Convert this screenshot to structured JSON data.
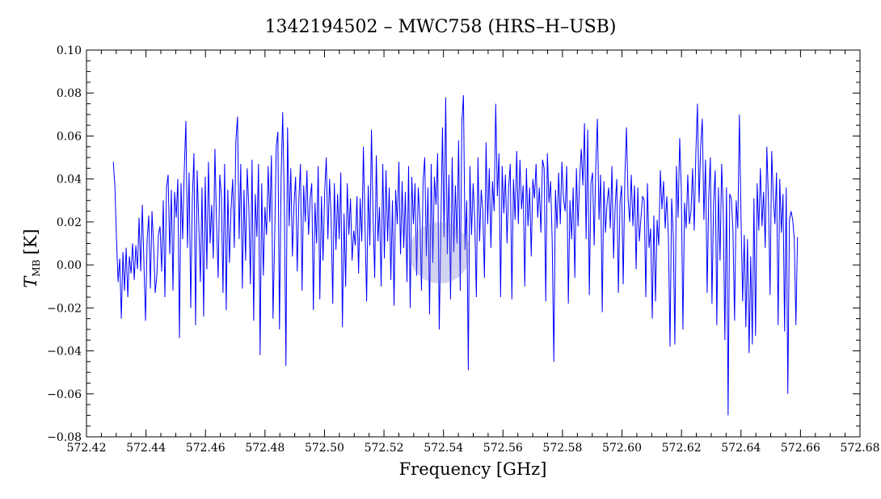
{
  "chart_data": {
    "type": "line",
    "title": "1342194502 – MWC758 (HRS–H–USB)",
    "xlabel": "Frequency [GHz]",
    "ylabel_main": "T",
    "ylabel_sub": "MB",
    "ylabel_unit": "[K]",
    "xlim": [
      572.42,
      572.68
    ],
    "ylim": [
      -0.08,
      0.1
    ],
    "x_ticks": [
      "572.42",
      "572.44",
      "572.46",
      "572.48",
      "572.50",
      "572.52",
      "572.54",
      "572.56",
      "572.58",
      "572.60",
      "572.62",
      "572.64",
      "572.66",
      "572.68"
    ],
    "y_ticks": [
      "−0.08",
      "−0.06",
      "−0.04",
      "−0.02",
      "0.00",
      "0.02",
      "0.04",
      "0.06",
      "0.08",
      "0.10"
    ],
    "grid": false,
    "series": [
      {
        "color": "#0000ff",
        "x_start": 572.429,
        "x_end": 572.659,
        "values": [
          0.048,
          0.037,
          0.012,
          -0.008,
          0.003,
          -0.025,
          0.006,
          -0.012,
          0.008,
          -0.015,
          0.004,
          -0.004,
          0.01,
          -0.007,
          0.009,
          -0.002,
          0.022,
          -0.003,
          0.028,
          0.001,
          -0.026,
          0.012,
          0.023,
          -0.011,
          0.025,
          0.009,
          -0.013,
          -0.005,
          0.014,
          0.018,
          -0.003,
          0.03,
          -0.015,
          0.036,
          0.042,
          0.005,
          0.035,
          -0.012,
          0.034,
          0.022,
          0.04,
          -0.034,
          0.038,
          0.012,
          0.044,
          0.067,
          0.008,
          0.043,
          -0.02,
          0.031,
          0.052,
          -0.028,
          0.044,
          0.019,
          -0.008,
          0.036,
          -0.024,
          0.041,
          -0.002,
          0.048,
          0.01,
          0.028,
          0.003,
          0.054,
          0.019,
          -0.006,
          0.042,
          0.032,
          -0.013,
          0.047,
          -0.021,
          0.035,
          0.001,
          0.026,
          0.04,
          0.008,
          0.058,
          0.069,
          0.012,
          0.047,
          -0.011,
          0.035,
          0.002,
          0.045,
          0.027,
          -0.009,
          0.049,
          -0.026,
          0.033,
          0.013,
          0.047,
          -0.042,
          0.038,
          -0.005,
          0.027,
          0.014,
          0.046,
          0.02,
          0.051,
          -0.025,
          0.012,
          0.055,
          0.062,
          -0.03,
          0.04,
          0.071,
          0.028,
          -0.047,
          0.064,
          0.018,
          0.045,
          0.004,
          0.028,
          0.041,
          -0.003,
          0.03,
          0.047,
          -0.012,
          0.037,
          0.02,
          0.044,
          0.014,
          0.031,
          0.038,
          -0.021,
          0.029,
          0.01,
          0.046,
          -0.016,
          0.032,
          0.002,
          0.034,
          0.05,
          0.012,
          0.04,
          0.022,
          -0.018,
          0.038,
          0.007,
          0.033,
          0.012,
          0.043,
          -0.029,
          0.024,
          -0.01,
          0.038,
          0.014,
          0.031,
          0.002,
          0.016,
          0.009,
          0.032,
          -0.004,
          0.031,
          0.011,
          0.055,
          0.018,
          -0.017,
          0.037,
          0.009,
          0.063,
          0.022,
          -0.006,
          0.051,
          0.011,
          0.027,
          -0.01,
          0.047,
          0.003,
          0.044,
          0.011,
          0.036,
          -0.007,
          0.03,
          -0.019,
          0.035,
          0.019,
          0.048,
          0.005,
          0.039,
          0.008,
          0.034,
          -0.008,
          0.046,
          -0.02,
          0.041,
          0.019,
          0.038,
          -0.005,
          0.036,
          0.022,
          -0.012,
          0.039,
          0.05,
          0.004,
          0.036,
          -0.023,
          0.047,
          0.001,
          0.041,
          0.028,
          0.052,
          -0.03,
          0.018,
          0.064,
          0.013,
          0.078,
          0.005,
          0.042,
          -0.016,
          0.05,
          0.006,
          0.037,
          0.01,
          0.058,
          -0.012,
          0.066,
          0.079,
          0.007,
          0.03,
          -0.049,
          0.046,
          0.014,
          0.038,
          0.021,
          -0.015,
          0.05,
          0.011,
          0.035,
          0.025,
          -0.006,
          0.057,
          0.019,
          0.045,
          0.008,
          0.039,
          0.025,
          0.075,
          0.032,
          0.052,
          -0.015,
          0.046,
          0.024,
          0.042,
          0.01,
          0.036,
          0.047,
          -0.016,
          0.04,
          0.021,
          0.053,
          0.019,
          0.049,
          0.026,
          0.037,
          -0.01,
          0.045,
          0.018,
          0.036,
          0.004,
          0.04,
          0.031,
          0.047,
          0.022,
          0.036,
          0.015,
          0.049,
          0.045,
          -0.017,
          0.052,
          0.029,
          0.039,
          0.011,
          -0.045,
          0.035,
          0.017,
          0.043,
          0.019,
          0.048,
          0.031,
          0.025,
          0.046,
          -0.018,
          0.03,
          0.012,
          0.036,
          -0.006,
          0.045,
          0.018,
          0.04,
          0.054,
          0.037,
          0.066,
          0.012,
          0.063,
          -0.014,
          0.038,
          0.043,
          0.009,
          0.046,
          0.068,
          0.021,
          0.042,
          -0.022,
          0.039,
          0.015,
          0.029,
          0.036,
          0.017,
          0.046,
          0.003,
          0.027,
          0.04,
          -0.013,
          0.029,
          0.037,
          -0.009,
          0.04,
          0.064,
          0.031,
          0.02,
          0.042,
          0.018,
          0.037,
          -0.002,
          0.036,
          0.011,
          0.022,
          0.032,
          0.03,
          -0.015,
          0.038,
          0.008,
          0.017,
          -0.025,
          0.023,
          -0.017,
          0.021,
          0.009,
          0.044,
          0.026,
          0.039,
          0.017,
          0.032,
          0.013,
          -0.038,
          0.031,
          0.014,
          -0.037,
          0.046,
          0.022,
          0.059,
          0.035,
          -0.03,
          0.029,
          0.017,
          0.042,
          0.019,
          0.025,
          0.045,
          0.016,
          0.052,
          0.075,
          0.029,
          0.055,
          0.068,
          0.021,
          0.049,
          -0.013,
          0.032,
          0.05,
          -0.018,
          0.029,
          0.044,
          -0.028,
          0.036,
          0.002,
          0.047,
          0.024,
          -0.035,
          0.036,
          -0.07,
          0.033,
          0.031,
          0.016,
          -0.026,
          0.03,
          0.017,
          0.07,
          0.022,
          -0.017,
          0.014,
          -0.029,
          0.012,
          -0.041,
          0.004,
          -0.037,
          0.031,
          -0.033,
          0.038,
          0.016,
          0.045,
          0.018,
          0.034,
          0.008,
          0.055,
          0.03,
          -0.014,
          0.053,
          0.032,
          0.019,
          0.043,
          -0.028,
          0.04,
          0.015,
          0.033,
          -0.031,
          0.036,
          -0.06,
          0.021,
          0.025,
          0.021,
          0.012,
          -0.028,
          0.013
        ]
      }
    ]
  }
}
